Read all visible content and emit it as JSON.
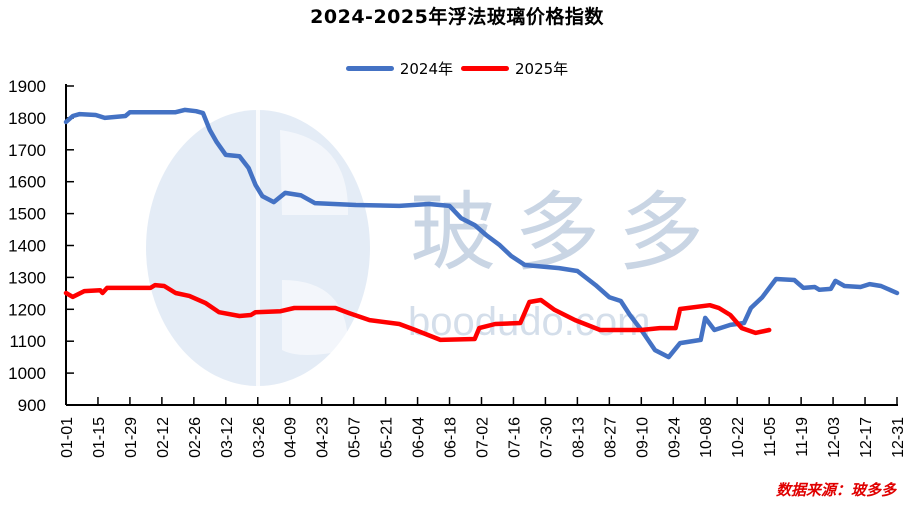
{
  "chart_data": {
    "type": "line",
    "title": "2024-2025年浮法玻璃价格指数",
    "xlabel": "",
    "ylabel": "",
    "ylim": [
      900,
      1900
    ],
    "yticks": [
      900,
      1000,
      1100,
      1200,
      1300,
      1400,
      1500,
      1600,
      1700,
      1800,
      1900
    ],
    "xlim_days": [
      0,
      364
    ],
    "x_tick_labels": [
      "01-01",
      "01-15",
      "01-29",
      "02-12",
      "02-26",
      "03-12",
      "03-26",
      "04-09",
      "04-23",
      "05-07",
      "05-21",
      "06-04",
      "06-18",
      "07-02",
      "07-16",
      "07-30",
      "08-13",
      "08-27",
      "09-10",
      "09-24",
      "10-08",
      "10-22",
      "11-05",
      "11-19",
      "12-03",
      "12-17",
      "12-31"
    ],
    "grid": false,
    "legend_position": "top",
    "x_unit": "day of year (0 = 01-01)",
    "series": [
      {
        "name": "2024年",
        "color": "#4472C4",
        "points": [
          [
            0,
            1787
          ],
          [
            3,
            1806
          ],
          [
            6,
            1812
          ],
          [
            13,
            1809
          ],
          [
            17,
            1800
          ],
          [
            26,
            1806
          ],
          [
            28,
            1818
          ],
          [
            48,
            1818
          ],
          [
            52,
            1825
          ],
          [
            57,
            1821
          ],
          [
            60,
            1815
          ],
          [
            63,
            1762
          ],
          [
            66,
            1724
          ],
          [
            70,
            1684
          ],
          [
            76,
            1680
          ],
          [
            80,
            1643
          ],
          [
            83,
            1590
          ],
          [
            86,
            1555
          ],
          [
            91,
            1536
          ],
          [
            96,
            1565
          ],
          [
            103,
            1557
          ],
          [
            109,
            1533
          ],
          [
            127,
            1527
          ],
          [
            146,
            1524
          ],
          [
            159,
            1530
          ],
          [
            168,
            1524
          ],
          [
            173,
            1486
          ],
          [
            179,
            1464
          ],
          [
            184,
            1433
          ],
          [
            190,
            1401
          ],
          [
            195,
            1367
          ],
          [
            201,
            1339
          ],
          [
            216,
            1329
          ],
          [
            224,
            1320
          ],
          [
            232,
            1276
          ],
          [
            238,
            1238
          ],
          [
            243,
            1226
          ],
          [
            247,
            1182
          ],
          [
            252,
            1135
          ],
          [
            258,
            1072
          ],
          [
            264,
            1050
          ],
          [
            269,
            1094
          ],
          [
            278,
            1104
          ],
          [
            280,
            1173
          ],
          [
            284,
            1135
          ],
          [
            291,
            1151
          ],
          [
            297,
            1157
          ],
          [
            300,
            1204
          ],
          [
            305,
            1238
          ],
          [
            311,
            1295
          ],
          [
            319,
            1292
          ],
          [
            323,
            1267
          ],
          [
            328,
            1270
          ],
          [
            330,
            1261
          ],
          [
            335,
            1264
          ],
          [
            337,
            1289
          ],
          [
            341,
            1273
          ],
          [
            348,
            1270
          ],
          [
            352,
            1279
          ],
          [
            357,
            1273
          ],
          [
            364,
            1251
          ]
        ]
      },
      {
        "name": "2025年",
        "color": "#FF0000",
        "points": [
          [
            0,
            1251
          ],
          [
            3,
            1239
          ],
          [
            8,
            1257
          ],
          [
            15,
            1260
          ],
          [
            16,
            1251
          ],
          [
            18,
            1267
          ],
          [
            37,
            1267
          ],
          [
            39,
            1276
          ],
          [
            43,
            1273
          ],
          [
            48,
            1251
          ],
          [
            54,
            1242
          ],
          [
            61,
            1220
          ],
          [
            67,
            1191
          ],
          [
            76,
            1179
          ],
          [
            81,
            1182
          ],
          [
            83,
            1191
          ],
          [
            94,
            1194
          ],
          [
            100,
            1204
          ],
          [
            118,
            1204
          ],
          [
            124,
            1188
          ],
          [
            133,
            1166
          ],
          [
            146,
            1154
          ],
          [
            153,
            1135
          ],
          [
            164,
            1104
          ],
          [
            179,
            1107
          ],
          [
            181,
            1141
          ],
          [
            188,
            1154
          ],
          [
            199,
            1157
          ],
          [
            203,
            1223
          ],
          [
            208,
            1229
          ],
          [
            214,
            1198
          ],
          [
            223,
            1166
          ],
          [
            234,
            1135
          ],
          [
            252,
            1135
          ],
          [
            260,
            1141
          ],
          [
            267,
            1141
          ],
          [
            269,
            1201
          ],
          [
            282,
            1213
          ],
          [
            286,
            1204
          ],
          [
            291,
            1182
          ],
          [
            296,
            1141
          ],
          [
            302,
            1126
          ],
          [
            306,
            1132
          ],
          [
            308,
            1135
          ]
        ]
      }
    ],
    "annotations": [
      "数据来源：玻多多"
    ],
    "watermark": [
      "玻多多",
      "boodudo.com"
    ]
  },
  "title": "2024-2025年浮法玻璃价格指数",
  "legend": [
    {
      "label": "2024年",
      "color": "#4472C4"
    },
    {
      "label": "2025年",
      "color": "#FF0000"
    }
  ],
  "source_note": "数据来源：玻多多",
  "watermark_text": "玻多多",
  "watermark_url": "boodudo.com"
}
